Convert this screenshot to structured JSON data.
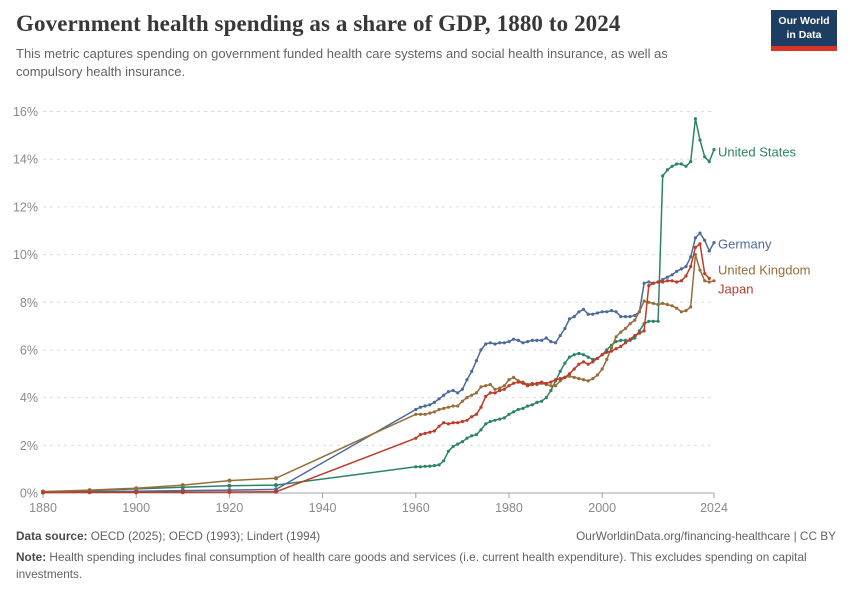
{
  "header": {
    "title": "Government health spending as a share of GDP, 1880 to 2024",
    "subtitle": "This metric captures spending on government funded health care systems and social health insurance, as well as compulsory health insurance.",
    "logo": {
      "line1": "Our World",
      "line2": "in Data",
      "bg_color": "#1d3d63",
      "accent_color": "#dc3328"
    }
  },
  "footer": {
    "source_label": "Data source:",
    "source_text": " OECD (2025); OECD (1993); Lindert (1994)",
    "link_text": "OurWorldinData.org/financing-healthcare | CC BY",
    "note_label": "Note:",
    "note_text": " Health spending includes final consumption of health care goods and services (i.e. current health expenditure). This excludes spending on capital investments."
  },
  "chart_data": {
    "type": "line",
    "title": "Government health spending as a share of GDP, 1880 to 2024",
    "xlabel": "",
    "ylabel": "",
    "xlim": [
      1880,
      2024
    ],
    "ylim": [
      0,
      16
    ],
    "x_ticks": [
      1880,
      1900,
      1920,
      1940,
      1960,
      1980,
      2000,
      2024
    ],
    "y_ticks": [
      0,
      2,
      4,
      6,
      8,
      10,
      12,
      14,
      16
    ],
    "y_tick_suffix": "%",
    "grid": "horizontal-dashed",
    "legend_position": "line-end-labels-right",
    "series": [
      {
        "name": "United States",
        "color": "#2C8465",
        "label_value": 14.3,
        "points": [
          [
            1880,
            0.05
          ],
          [
            1890,
            0.1
          ],
          [
            1900,
            0.17
          ],
          [
            1910,
            0.24
          ],
          [
            1920,
            0.3
          ],
          [
            1930,
            0.33
          ],
          [
            1960,
            1.1
          ],
          [
            1961,
            1.1
          ],
          [
            1962,
            1.12
          ],
          [
            1963,
            1.13
          ],
          [
            1964,
            1.15
          ],
          [
            1965,
            1.18
          ],
          [
            1966,
            1.35
          ],
          [
            1967,
            1.75
          ],
          [
            1968,
            1.95
          ],
          [
            1969,
            2.05
          ],
          [
            1970,
            2.15
          ],
          [
            1971,
            2.3
          ],
          [
            1972,
            2.4
          ],
          [
            1973,
            2.45
          ],
          [
            1974,
            2.65
          ],
          [
            1975,
            2.9
          ],
          [
            1976,
            3.0
          ],
          [
            1977,
            3.05
          ],
          [
            1978,
            3.1
          ],
          [
            1979,
            3.15
          ],
          [
            1980,
            3.3
          ],
          [
            1981,
            3.4
          ],
          [
            1982,
            3.5
          ],
          [
            1983,
            3.55
          ],
          [
            1984,
            3.65
          ],
          [
            1985,
            3.7
          ],
          [
            1986,
            3.8
          ],
          [
            1987,
            3.85
          ],
          [
            1988,
            4.0
          ],
          [
            1989,
            4.3
          ],
          [
            1990,
            4.7
          ],
          [
            1991,
            5.1
          ],
          [
            1992,
            5.45
          ],
          [
            1993,
            5.7
          ],
          [
            1994,
            5.8
          ],
          [
            1995,
            5.85
          ],
          [
            1996,
            5.8
          ],
          [
            1997,
            5.7
          ],
          [
            1998,
            5.6
          ],
          [
            1999,
            5.65
          ],
          [
            2000,
            5.8
          ],
          [
            2001,
            6.0
          ],
          [
            2002,
            6.2
          ],
          [
            2003,
            6.35
          ],
          [
            2004,
            6.4
          ],
          [
            2005,
            6.4
          ],
          [
            2006,
            6.4
          ],
          [
            2007,
            6.5
          ],
          [
            2008,
            6.8
          ],
          [
            2009,
            7.1
          ],
          [
            2010,
            7.2
          ],
          [
            2011,
            7.2
          ],
          [
            2012,
            7.2
          ],
          [
            2013,
            13.3
          ],
          [
            2014,
            13.55
          ],
          [
            2015,
            13.7
          ],
          [
            2016,
            13.8
          ],
          [
            2017,
            13.8
          ],
          [
            2018,
            13.7
          ],
          [
            2019,
            13.9
          ],
          [
            2020,
            15.7
          ],
          [
            2021,
            14.8
          ],
          [
            2022,
            14.1
          ],
          [
            2023,
            13.9
          ],
          [
            2024,
            14.4
          ]
        ]
      },
      {
        "name": "Germany",
        "color": "#4C6A9C",
        "label_value": 10.45,
        "points": [
          [
            1880,
            0.02
          ],
          [
            1890,
            0.05
          ],
          [
            1900,
            0.07
          ],
          [
            1910,
            0.1
          ],
          [
            1920,
            0.12
          ],
          [
            1930,
            0.15
          ],
          [
            1960,
            3.5
          ],
          [
            1961,
            3.6
          ],
          [
            1962,
            3.65
          ],
          [
            1963,
            3.7
          ],
          [
            1964,
            3.8
          ],
          [
            1965,
            3.95
          ],
          [
            1966,
            4.1
          ],
          [
            1967,
            4.25
          ],
          [
            1968,
            4.3
          ],
          [
            1969,
            4.2
          ],
          [
            1970,
            4.35
          ],
          [
            1971,
            4.75
          ],
          [
            1972,
            5.1
          ],
          [
            1973,
            5.55
          ],
          [
            1974,
            6.0
          ],
          [
            1975,
            6.25
          ],
          [
            1976,
            6.3
          ],
          [
            1977,
            6.25
          ],
          [
            1978,
            6.3
          ],
          [
            1979,
            6.3
          ],
          [
            1980,
            6.35
          ],
          [
            1981,
            6.45
          ],
          [
            1982,
            6.4
          ],
          [
            1983,
            6.3
          ],
          [
            1984,
            6.35
          ],
          [
            1985,
            6.4
          ],
          [
            1986,
            6.4
          ],
          [
            1987,
            6.4
          ],
          [
            1988,
            6.5
          ],
          [
            1989,
            6.35
          ],
          [
            1990,
            6.3
          ],
          [
            1991,
            6.6
          ],
          [
            1992,
            6.9
          ],
          [
            1993,
            7.3
          ],
          [
            1994,
            7.4
          ],
          [
            1995,
            7.6
          ],
          [
            1996,
            7.7
          ],
          [
            1997,
            7.5
          ],
          [
            1998,
            7.5
          ],
          [
            1999,
            7.55
          ],
          [
            2000,
            7.6
          ],
          [
            2001,
            7.6
          ],
          [
            2002,
            7.65
          ],
          [
            2003,
            7.6
          ],
          [
            2004,
            7.4
          ],
          [
            2005,
            7.4
          ],
          [
            2006,
            7.4
          ],
          [
            2007,
            7.45
          ],
          [
            2008,
            7.6
          ],
          [
            2009,
            8.8
          ],
          [
            2010,
            8.85
          ],
          [
            2011,
            8.8
          ],
          [
            2012,
            8.85
          ],
          [
            2013,
            8.95
          ],
          [
            2014,
            9.05
          ],
          [
            2015,
            9.15
          ],
          [
            2016,
            9.3
          ],
          [
            2017,
            9.4
          ],
          [
            2018,
            9.5
          ],
          [
            2019,
            9.9
          ],
          [
            2020,
            10.7
          ],
          [
            2021,
            10.9
          ],
          [
            2022,
            10.6
          ],
          [
            2023,
            10.15
          ],
          [
            2024,
            10.5
          ]
        ]
      },
      {
        "name": "United Kingdom",
        "color": "#996D39",
        "label_value": 9.35,
        "points": [
          [
            1880,
            0.06
          ],
          [
            1890,
            0.12
          ],
          [
            1900,
            0.2
          ],
          [
            1910,
            0.33
          ],
          [
            1920,
            0.52
          ],
          [
            1930,
            0.62
          ],
          [
            1960,
            3.3
          ],
          [
            1961,
            3.3
          ],
          [
            1962,
            3.3
          ],
          [
            1963,
            3.35
          ],
          [
            1964,
            3.4
          ],
          [
            1965,
            3.5
          ],
          [
            1966,
            3.55
          ],
          [
            1967,
            3.6
          ],
          [
            1968,
            3.65
          ],
          [
            1969,
            3.65
          ],
          [
            1970,
            3.85
          ],
          [
            1971,
            4.0
          ],
          [
            1972,
            4.1
          ],
          [
            1973,
            4.2
          ],
          [
            1974,
            4.45
          ],
          [
            1975,
            4.5
          ],
          [
            1976,
            4.55
          ],
          [
            1977,
            4.35
          ],
          [
            1978,
            4.4
          ],
          [
            1979,
            4.5
          ],
          [
            1980,
            4.75
          ],
          [
            1981,
            4.85
          ],
          [
            1982,
            4.7
          ],
          [
            1983,
            4.65
          ],
          [
            1984,
            4.55
          ],
          [
            1985,
            4.6
          ],
          [
            1986,
            4.55
          ],
          [
            1987,
            4.6
          ],
          [
            1988,
            4.55
          ],
          [
            1989,
            4.5
          ],
          [
            1990,
            4.5
          ],
          [
            1991,
            4.7
          ],
          [
            1992,
            4.85
          ],
          [
            1993,
            4.9
          ],
          [
            1994,
            4.85
          ],
          [
            1995,
            4.8
          ],
          [
            1996,
            4.75
          ],
          [
            1997,
            4.7
          ],
          [
            1998,
            4.8
          ],
          [
            1999,
            4.95
          ],
          [
            2000,
            5.2
          ],
          [
            2001,
            5.6
          ],
          [
            2002,
            6.1
          ],
          [
            2003,
            6.55
          ],
          [
            2004,
            6.75
          ],
          [
            2005,
            6.9
          ],
          [
            2006,
            7.1
          ],
          [
            2007,
            7.25
          ],
          [
            2008,
            7.6
          ],
          [
            2009,
            8.05
          ],
          [
            2010,
            8.0
          ],
          [
            2011,
            7.95
          ],
          [
            2012,
            7.9
          ],
          [
            2013,
            7.95
          ],
          [
            2014,
            7.9
          ],
          [
            2015,
            7.85
          ],
          [
            2016,
            7.75
          ],
          [
            2017,
            7.6
          ],
          [
            2018,
            7.65
          ],
          [
            2019,
            7.8
          ],
          [
            2020,
            10.0
          ],
          [
            2021,
            9.35
          ],
          [
            2022,
            8.9
          ],
          [
            2023,
            8.85
          ],
          [
            2024,
            8.9
          ]
        ]
      },
      {
        "name": "Japan",
        "color": "#BC3C29",
        "label_value": 8.55,
        "points": [
          [
            1880,
            0.02
          ],
          [
            1890,
            0.03
          ],
          [
            1900,
            0.03
          ],
          [
            1910,
            0.03
          ],
          [
            1920,
            0.04
          ],
          [
            1930,
            0.05
          ],
          [
            1960,
            2.3
          ],
          [
            1961,
            2.45
          ],
          [
            1962,
            2.5
          ],
          [
            1963,
            2.55
          ],
          [
            1964,
            2.6
          ],
          [
            1965,
            2.8
          ],
          [
            1966,
            2.95
          ],
          [
            1967,
            2.9
          ],
          [
            1968,
            2.95
          ],
          [
            1969,
            2.95
          ],
          [
            1970,
            3.0
          ],
          [
            1971,
            3.05
          ],
          [
            1972,
            3.2
          ],
          [
            1973,
            3.3
          ],
          [
            1974,
            3.6
          ],
          [
            1975,
            4.05
          ],
          [
            1976,
            4.2
          ],
          [
            1977,
            4.2
          ],
          [
            1978,
            4.3
          ],
          [
            1979,
            4.35
          ],
          [
            1980,
            4.5
          ],
          [
            1981,
            4.6
          ],
          [
            1982,
            4.65
          ],
          [
            1983,
            4.6
          ],
          [
            1984,
            4.5
          ],
          [
            1985,
            4.55
          ],
          [
            1986,
            4.6
          ],
          [
            1987,
            4.65
          ],
          [
            1988,
            4.6
          ],
          [
            1989,
            4.65
          ],
          [
            1990,
            4.75
          ],
          [
            1991,
            4.8
          ],
          [
            1992,
            4.85
          ],
          [
            1993,
            5.0
          ],
          [
            1994,
            5.2
          ],
          [
            1995,
            5.4
          ],
          [
            1996,
            5.5
          ],
          [
            1997,
            5.4
          ],
          [
            1998,
            5.5
          ],
          [
            1999,
            5.65
          ],
          [
            2000,
            5.8
          ],
          [
            2001,
            5.9
          ],
          [
            2002,
            5.95
          ],
          [
            2003,
            6.05
          ],
          [
            2004,
            6.15
          ],
          [
            2005,
            6.3
          ],
          [
            2006,
            6.45
          ],
          [
            2007,
            6.6
          ],
          [
            2008,
            6.7
          ],
          [
            2009,
            6.8
          ],
          [
            2010,
            8.7
          ],
          [
            2011,
            8.8
          ],
          [
            2012,
            8.85
          ],
          [
            2013,
            8.85
          ],
          [
            2014,
            8.9
          ],
          [
            2015,
            8.9
          ],
          [
            2016,
            8.85
          ],
          [
            2017,
            8.9
          ],
          [
            2018,
            9.1
          ],
          [
            2019,
            9.5
          ],
          [
            2020,
            10.3
          ],
          [
            2021,
            10.45
          ],
          [
            2022,
            9.2
          ],
          [
            2023,
            9.0
          ]
        ]
      }
    ]
  }
}
